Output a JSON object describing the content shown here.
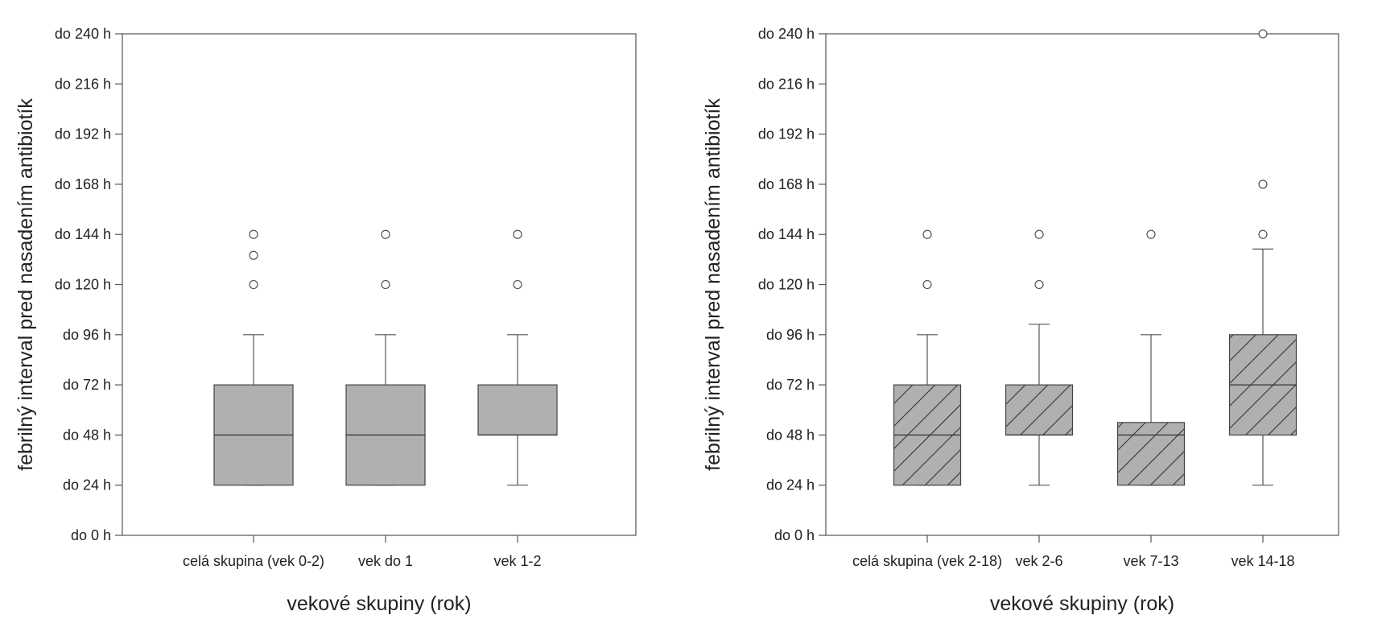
{
  "chart_data": [
    {
      "type": "boxplot",
      "xlabel": "vekové skupiny (rok)",
      "ylabel": "febrilný interval pred nasadením antibiotík",
      "ylim": [
        0,
        240
      ],
      "yticks": [
        {
          "value": 0,
          "label": "do 0 h"
        },
        {
          "value": 24,
          "label": "do 24 h"
        },
        {
          "value": 48,
          "label": "do 48 h"
        },
        {
          "value": 72,
          "label": "do 72 h"
        },
        {
          "value": 96,
          "label": "do 96 h"
        },
        {
          "value": 120,
          "label": "do 120 h"
        },
        {
          "value": 144,
          "label": "do 144 h"
        },
        {
          "value": 168,
          "label": "do 168 h"
        },
        {
          "value": 192,
          "label": "do 192 h"
        },
        {
          "value": 216,
          "label": "do 216 h"
        },
        {
          "value": 240,
          "label": "do 240 h"
        }
      ],
      "hatched": false,
      "box_color": "#b0b0b0",
      "categories": [
        "celá skupina (vek 0-2)",
        "vek do 1",
        "vek 1-2"
      ],
      "boxes": [
        {
          "whisker_low": 24,
          "q1": 24,
          "median": 48,
          "q3": 72,
          "whisker_high": 96,
          "outliers": [
            120,
            134,
            144
          ]
        },
        {
          "whisker_low": 24,
          "q1": 24,
          "median": 48,
          "q3": 72,
          "whisker_high": 96,
          "outliers": [
            120,
            144
          ]
        },
        {
          "whisker_low": 24,
          "q1": 48,
          "median": 48,
          "q3": 72,
          "whisker_high": 96,
          "outliers": [
            120,
            144
          ]
        }
      ]
    },
    {
      "type": "boxplot",
      "xlabel": "vekové skupiny (rok)",
      "ylabel": "febrilný interval pred nasadením antibiotík",
      "ylim": [
        0,
        240
      ],
      "yticks": [
        {
          "value": 0,
          "label": "do 0 h"
        },
        {
          "value": 24,
          "label": "do 24 h"
        },
        {
          "value": 48,
          "label": "do 48 h"
        },
        {
          "value": 72,
          "label": "do 72 h"
        },
        {
          "value": 96,
          "label": "do 96 h"
        },
        {
          "value": 120,
          "label": "do 120 h"
        },
        {
          "value": 144,
          "label": "do 144 h"
        },
        {
          "value": 168,
          "label": "do 168 h"
        },
        {
          "value": 192,
          "label": "do 192 h"
        },
        {
          "value": 216,
          "label": "do 216 h"
        },
        {
          "value": 240,
          "label": "do 240 h"
        }
      ],
      "hatched": true,
      "box_color": "#b0b0b0",
      "categories": [
        "celá skupina (vek 2-18)",
        "vek 2-6",
        "vek 7-13",
        "vek 14-18"
      ],
      "boxes": [
        {
          "whisker_low": 24,
          "q1": 24,
          "median": 48,
          "q3": 72,
          "whisker_high": 96,
          "outliers": [
            120,
            144
          ]
        },
        {
          "whisker_low": 24,
          "q1": 48,
          "median": 48,
          "q3": 72,
          "whisker_high": 101,
          "outliers": [
            120,
            144
          ]
        },
        {
          "whisker_low": 24,
          "q1": 24,
          "median": 48,
          "q3": 54,
          "whisker_high": 96,
          "outliers": [
            144
          ]
        },
        {
          "whisker_low": 24,
          "q1": 48,
          "median": 72,
          "q3": 96,
          "whisker_high": 137,
          "outliers": [
            144,
            168,
            240
          ]
        }
      ]
    }
  ]
}
